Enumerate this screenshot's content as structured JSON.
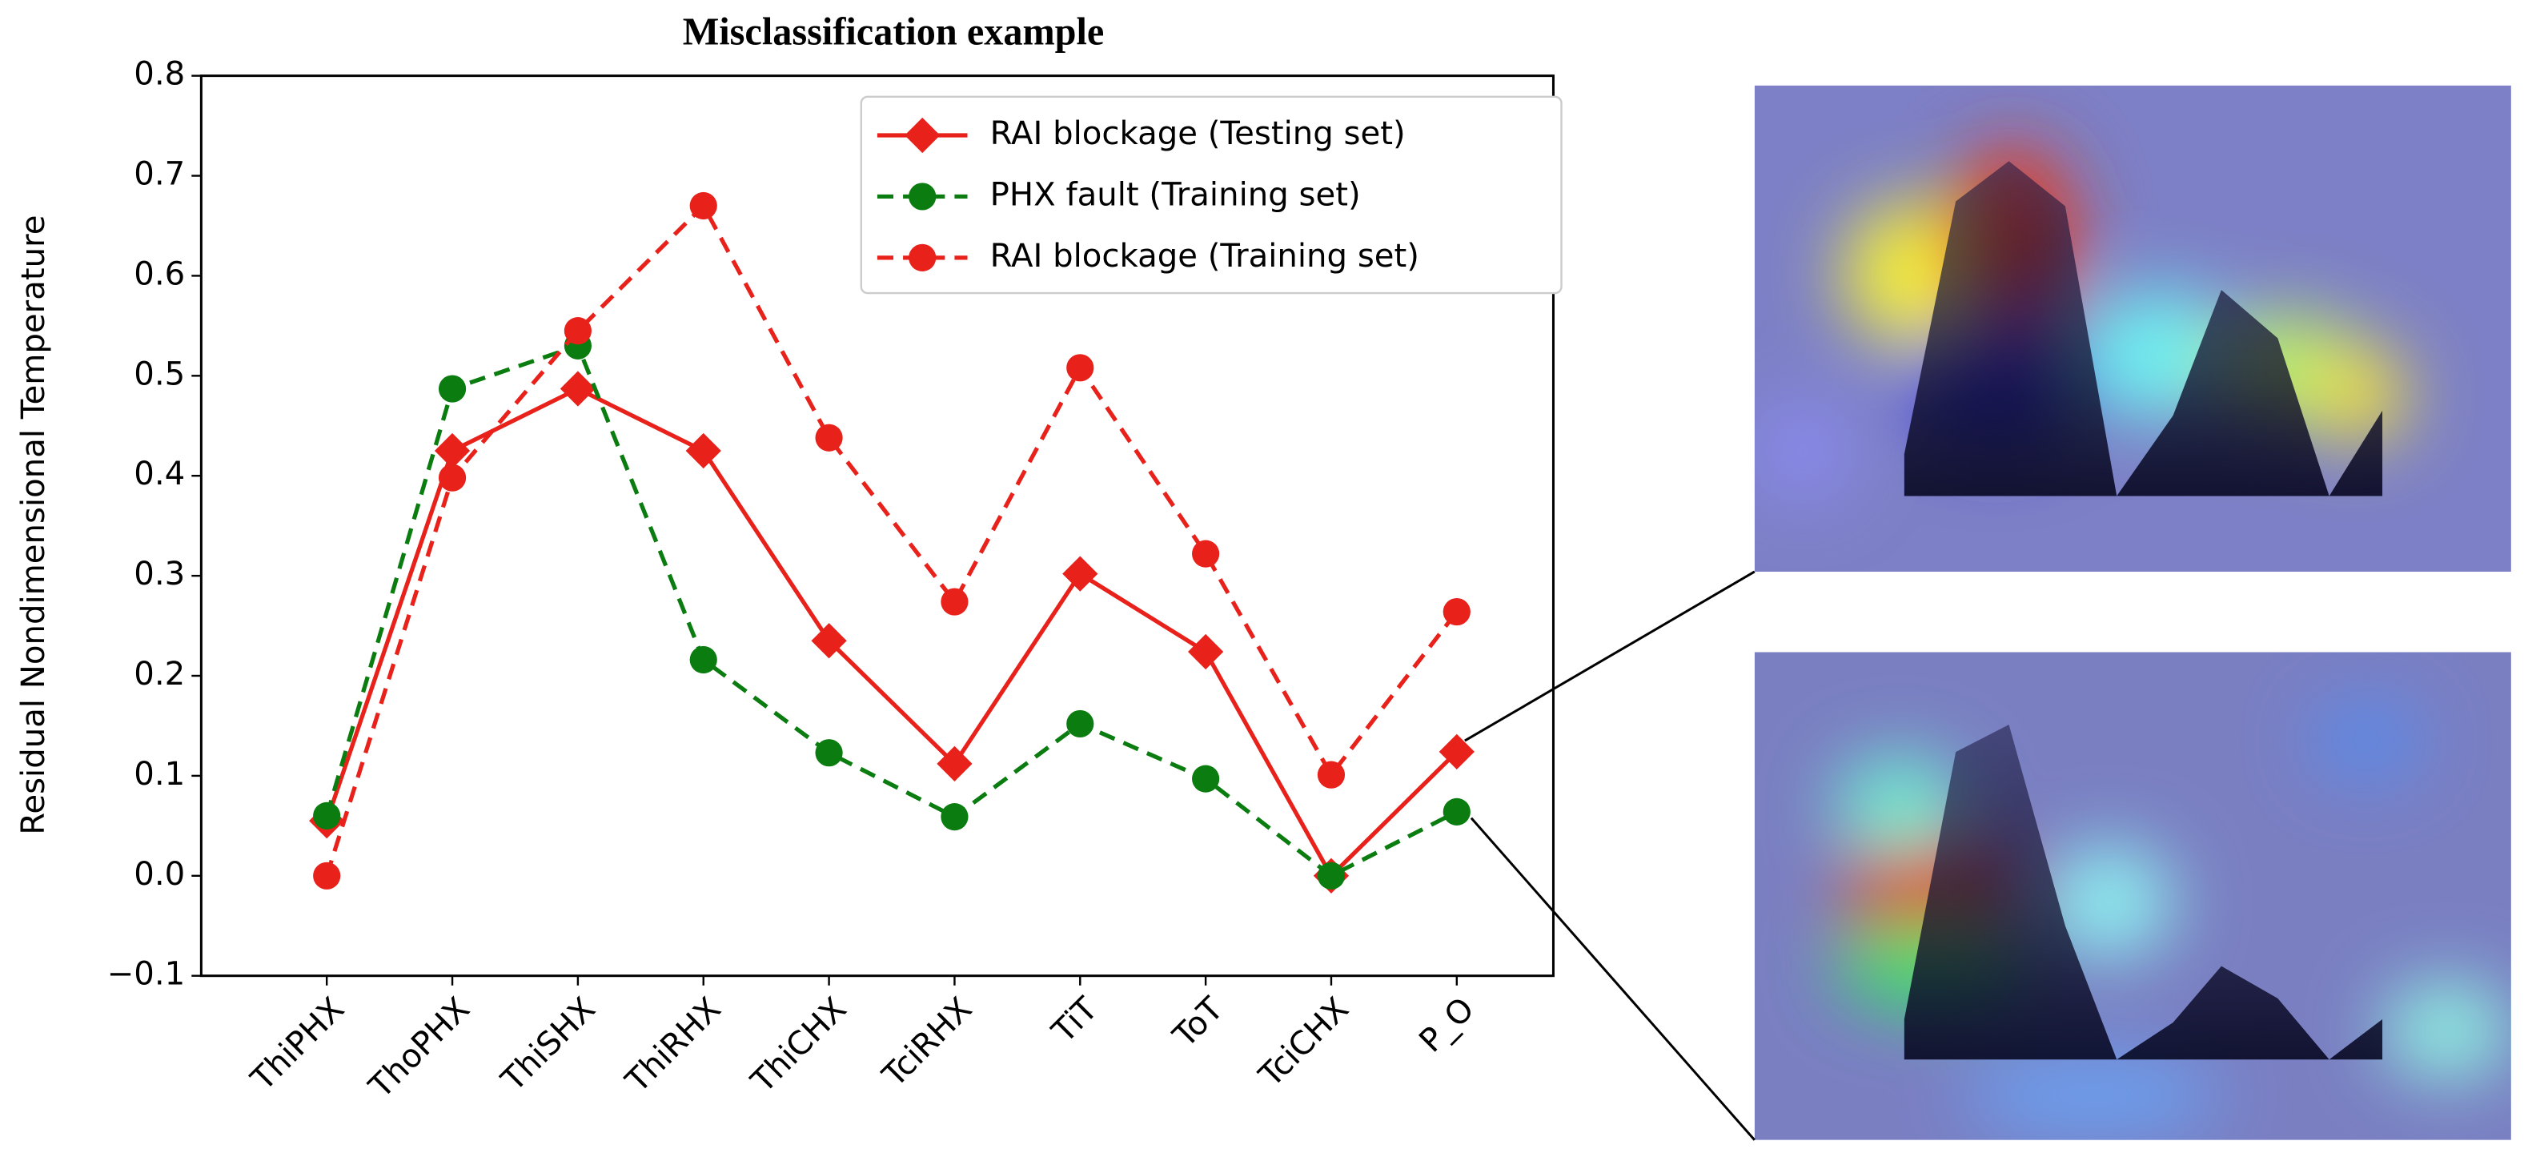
{
  "chart_data": {
    "type": "line",
    "title": "Misclassification example",
    "ylabel": "Residual Nondimensional Temperature",
    "categories": [
      "ThiPHX",
      "ThoPHX",
      "ThiSHX",
      "ThiRHX",
      "ThiCHX",
      "TciRHX",
      "TiT",
      "ToT",
      "TciCHX",
      "P_O"
    ],
    "series": [
      {
        "name": "RAI blockage (Testing set)",
        "color": "#e8211b",
        "marker": "diamond",
        "dashed": false,
        "values": [
          0.055,
          0.425,
          0.487,
          0.425,
          0.235,
          0.112,
          0.302,
          0.224,
          0.0,
          0.124
        ]
      },
      {
        "name": "PHX fault (Training set)",
        "color": "#0a7c10",
        "marker": "circle",
        "dashed": true,
        "values": [
          0.06,
          0.487,
          0.53,
          0.216,
          0.123,
          0.059,
          0.152,
          0.097,
          0.0,
          0.064
        ]
      },
      {
        "name": "RAI blockage (Training set)",
        "color": "#e8211b",
        "marker": "circle",
        "dashed": true,
        "values": [
          0.0,
          0.398,
          0.545,
          0.67,
          0.438,
          0.274,
          0.508,
          0.322,
          0.101,
          0.264
        ]
      }
    ],
    "ylim": [
      -0.1,
      0.8
    ],
    "yticks": [
      {
        "value": -0.1,
        "label": "−0.1"
      },
      {
        "value": 0,
        "label": "0.0"
      },
      0.1,
      0.2,
      0.3,
      0.4,
      0.5,
      0.6,
      0.7,
      0.8
    ],
    "legend": "upper right",
    "grid": false
  }
}
